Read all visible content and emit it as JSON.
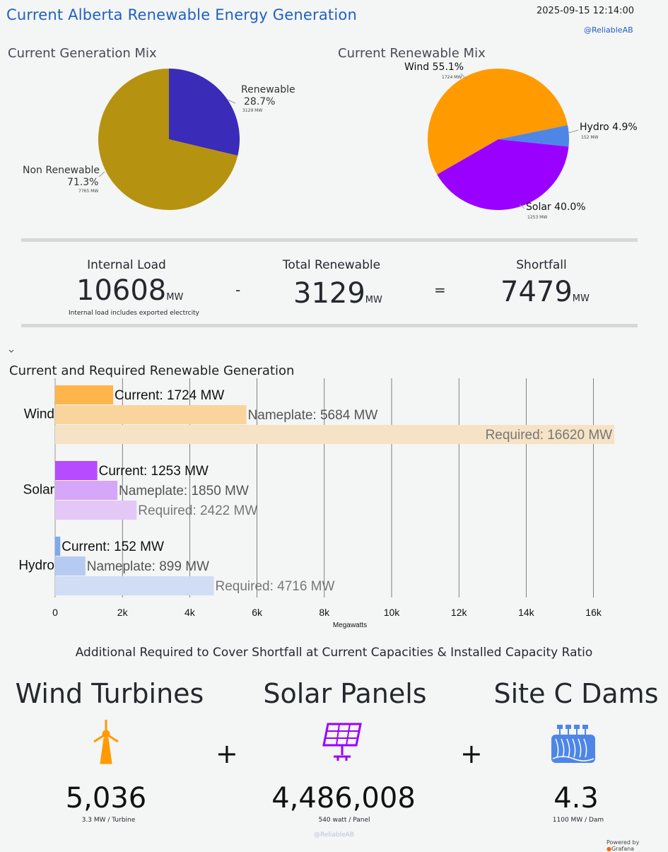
{
  "header": {
    "title": "Current Alberta Renewable Energy Generation",
    "timestamp": "2025-09-15 12:14:00",
    "handle": "@ReliableAB"
  },
  "generation_mix": {
    "title": "Current Generation Mix",
    "renewable": {
      "label": "Renewable",
      "pct": "28.7%",
      "mw": "3129 MW",
      "value": 3129,
      "color": "#3a2bb8"
    },
    "non_renewable": {
      "label": "Non Renewable",
      "pct": "71.3%",
      "mw": "7765 MW",
      "value": 7765,
      "color": "#b59210"
    }
  },
  "renewable_mix": {
    "title": "Current Renewable Mix",
    "wind": {
      "label": "Wind 55.1%",
      "mw": "1724 MW",
      "value": 1724,
      "color": "#ff9a00"
    },
    "hydro": {
      "label": "Hydro 4.9%",
      "mw": "152 MW",
      "value": 152,
      "color": "#4e86e8"
    },
    "solar": {
      "label": "Solar 40.0%",
      "mw": "1253 MW",
      "value": 1253,
      "color": "#9900ff"
    }
  },
  "stats": {
    "internal_load": {
      "label": "Internal Load",
      "value": "10608",
      "unit": "MW",
      "note": "Internal load includes exported electrcity"
    },
    "minus": "-",
    "total_renewable": {
      "label": "Total Renewable",
      "value": "3129",
      "unit": "MW"
    },
    "equals": "=",
    "shortfall": {
      "label": "Shortfall",
      "value": "7479",
      "unit": "MW"
    }
  },
  "collapse_icon": "chevron-down-icon",
  "chart_data": {
    "type": "bar",
    "title": "Current and Required Renewable Generation",
    "categories": [
      "Wind",
      "Solar",
      "Hydro"
    ],
    "series": [
      {
        "name": "Current",
        "values": [
          1724,
          1253,
          152
        ]
      },
      {
        "name": "Nameplate",
        "values": [
          5684,
          1850,
          899
        ]
      },
      {
        "name": "Required",
        "values": [
          16620,
          2422,
          4716
        ]
      }
    ],
    "bar_labels": [
      [
        "Current: 1724 MW",
        "Nameplate: 5684 MW",
        "Required: 16620 MW"
      ],
      [
        "Current: 1253 MW",
        "Nameplate: 1850 MW",
        "Required: 2422 MW"
      ],
      [
        "Current: 152 MW",
        "Nameplate: 899 MW",
        "Required: 4716 MW"
      ]
    ],
    "colors": [
      [
        "#ffb54a",
        "#f9d49c",
        "#f6e2c4"
      ],
      [
        "#b54cff",
        "#d6a6f9",
        "#e3c8f7"
      ],
      [
        "#80a8ec",
        "#b6cbf2",
        "#d0ddf4"
      ]
    ],
    "xlabel": "Megawatts",
    "xlim": [
      0,
      17000
    ],
    "xticks": [
      0,
      2000,
      4000,
      6000,
      8000,
      10000,
      12000,
      14000,
      16000
    ],
    "xtick_labels": [
      "0",
      "2k",
      "4k",
      "6k",
      "8k",
      "10k",
      "12k",
      "14k",
      "16k"
    ],
    "grid": true,
    "orientation": "horizontal"
  },
  "additional": {
    "title": "Additional Required to Cover Shortfall at Current Capacities & Installed Capacity Ratio",
    "wind": {
      "label": "Wind Turbines",
      "value": "5,036",
      "note": "3.3 MW / Turbine",
      "icon": "wind-turbine-icon",
      "color": "#ff9a00"
    },
    "solar": {
      "label": "Solar Panels",
      "value": "4,486,008",
      "note": "540 watt / Panel",
      "icon": "solar-panel-icon",
      "color": "#9900ff"
    },
    "dam": {
      "label": "Site C Dams",
      "value": "4.3",
      "note": "1100 MW / Dam",
      "icon": "dam-icon",
      "color": "#4e86e8"
    },
    "plus": "+"
  },
  "footer": {
    "handle": "@ReliableAB",
    "powered": "Powered by",
    "brand": "Grafana"
  }
}
